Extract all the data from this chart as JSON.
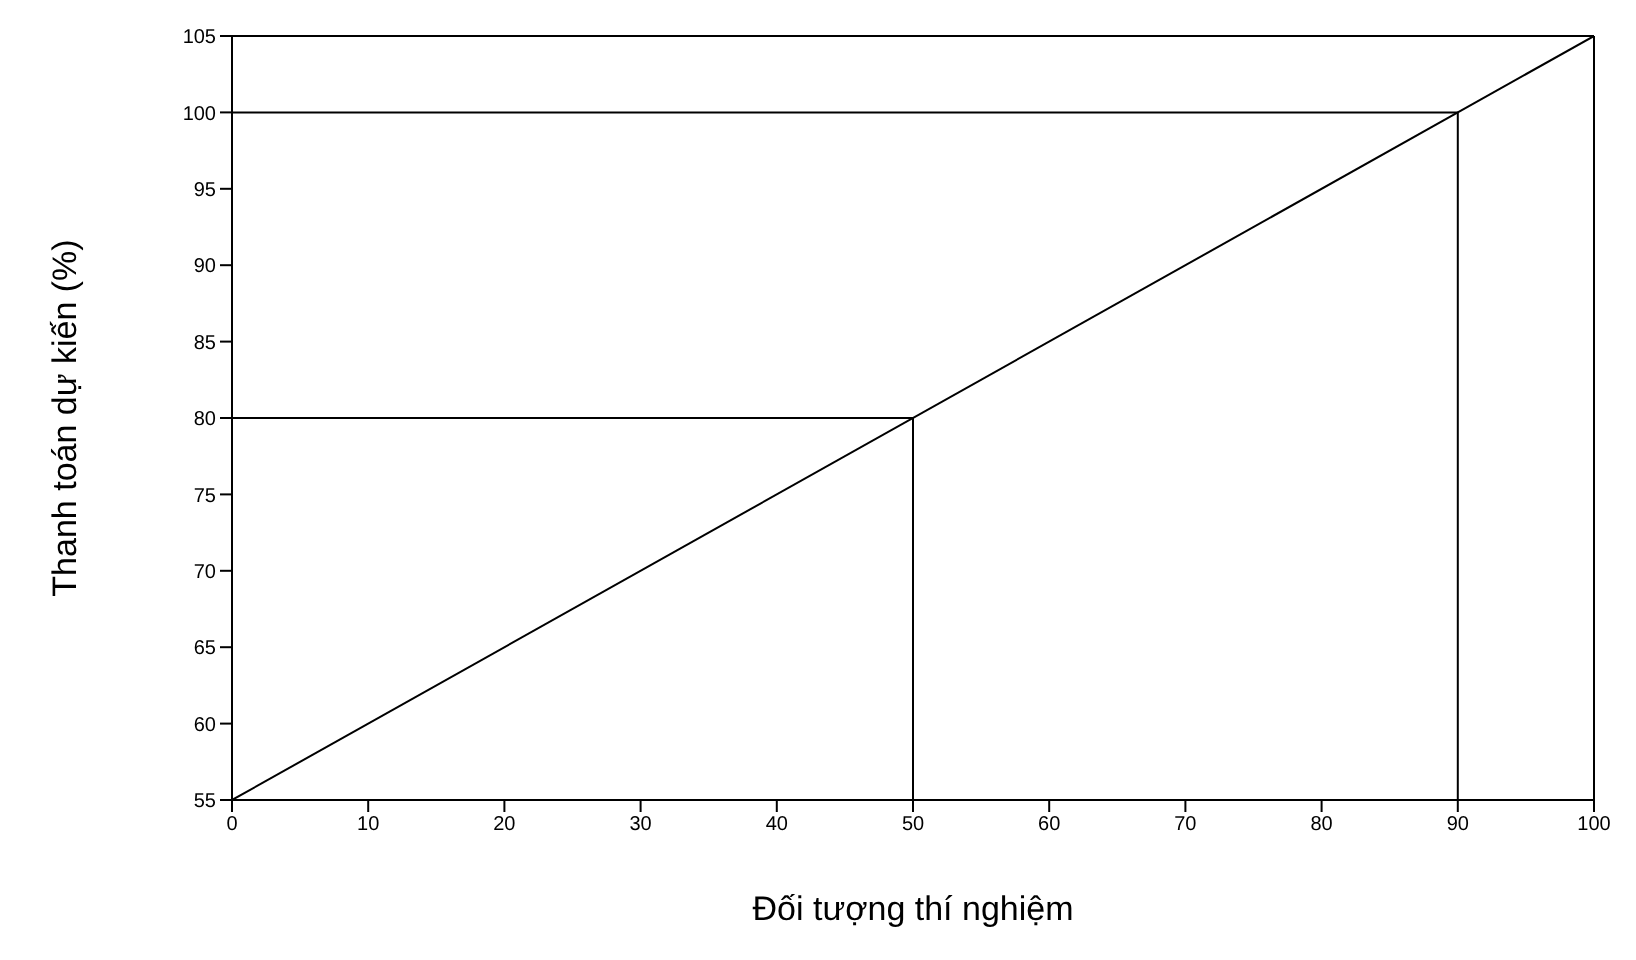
{
  "chart_data": {
    "type": "line",
    "xlabel": "Đối tượng thí nghiệm",
    "ylabel": "Thanh toán dự kiến (%)",
    "xlim": [
      0,
      100
    ],
    "xticks": [
      0,
      10,
      20,
      30,
      40,
      50,
      60,
      70,
      80,
      90,
      100
    ],
    "ylim": [
      55,
      105
    ],
    "yticks": [
      55,
      60,
      65,
      70,
      75,
      80,
      85,
      90,
      95,
      100,
      105
    ],
    "grid": false,
    "marker": "none",
    "line_style": "solid",
    "series": [
      {
        "color": "#000000",
        "x": [
          0,
          100
        ],
        "values": [
          55,
          105
        ]
      },
      {
        "color": "#000000",
        "x": [
          0,
          50,
          50
        ],
        "values": [
          80,
          80,
          55
        ]
      },
      {
        "color": "#000000",
        "x": [
          0,
          90,
          90
        ],
        "values": [
          100,
          100,
          55
        ]
      }
    ]
  }
}
